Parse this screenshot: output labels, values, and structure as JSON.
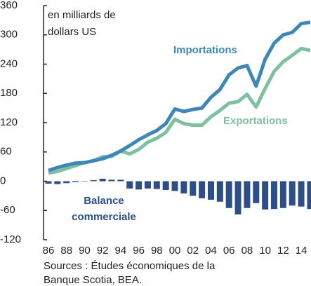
{
  "chart_data": {
    "type": "line",
    "unit_label": [
      "en milliards de",
      "dollars US"
    ],
    "categories": [
      "86",
      null,
      "88",
      null,
      "90",
      null,
      "92",
      null,
      "94",
      null,
      "96",
      null,
      "98",
      null,
      "00",
      null,
      "02",
      null,
      "04",
      null,
      "06",
      null,
      "08",
      null,
      "10",
      null,
      "12",
      null,
      "14",
      null
    ],
    "series": [
      {
        "name": "Importations",
        "color": "#3d87b8",
        "values": [
          22,
          28,
          33,
          37,
          38,
          42,
          46,
          53,
          62,
          73,
          85,
          95,
          104,
          118,
          148,
          143,
          147,
          150,
          172,
          188,
          218,
          232,
          237,
          195,
          250,
          283,
          300,
          305,
          323,
          326
        ]
      },
      {
        "name": "Exportations",
        "color": "#7fc0a0",
        "values": [
          17,
          20,
          26,
          32,
          38,
          42,
          50,
          51,
          62,
          56,
          65,
          80,
          88,
          100,
          127,
          118,
          115,
          115,
          132,
          145,
          160,
          163,
          178,
          152,
          190,
          225,
          245,
          258,
          272,
          268
        ]
      },
      {
        "name": "Balance commerciale",
        "label_lines": [
          "Balance",
          "commerciale"
        ],
        "type": "bar",
        "color": "#2d4e86",
        "values": [
          -5,
          -6,
          -4,
          -2,
          0,
          2,
          5,
          3,
          3,
          -15,
          -17,
          -15,
          -16,
          -18,
          -20,
          -25,
          -30,
          -35,
          -38,
          -42,
          -55,
          -68,
          -55,
          -45,
          -58,
          -57,
          -55,
          -50,
          -52,
          -57
        ]
      }
    ],
    "ylim": [
      -120,
      360
    ],
    "yticks": [
      -120,
      -60,
      0,
      60,
      120,
      180,
      240,
      300,
      360
    ],
    "sources": [
      "Sources : Études économiques de la",
      "Banque Scotia, BEA."
    ]
  }
}
